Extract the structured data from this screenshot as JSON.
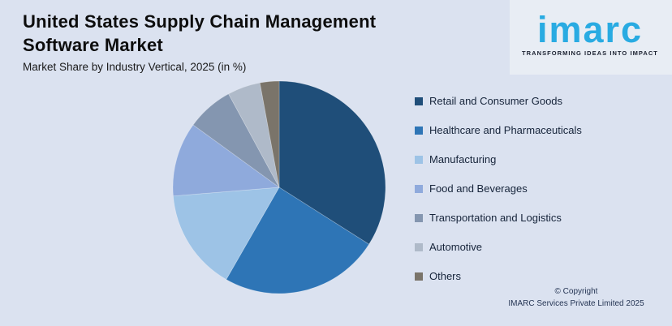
{
  "header": {
    "title": "United States Supply Chain Management Software Market",
    "subtitle": "Market Share by Industry Vertical, 2025 (in %)"
  },
  "logo": {
    "brand": "imarc",
    "tagline": "TRANSFORMING IDEAS INTO IMPACT",
    "brand_color": "#29ABE2"
  },
  "footer": {
    "line1": "© Copyright",
    "line2": "IMARC Services Private Limited 2025"
  },
  "colors": {
    "background": "#DBE2F0",
    "title_text": "#0D0D0D",
    "legend_text": "#16243A",
    "footer_text": "#253554"
  },
  "chart_data": {
    "type": "pie",
    "title": "United States Supply Chain Management Software Market",
    "subtitle": "Market Share by Industry Vertical, 2025 (in %)",
    "legend_position": "right",
    "data_labels_shown": false,
    "start_angle_deg": 0,
    "direction": "clockwise",
    "slices": [
      {
        "label": "Retail and Consumer Goods",
        "value": 34.0,
        "color": "#1F4E79"
      },
      {
        "label": "Healthcare and Pharmaceuticals",
        "value": 24.3,
        "color": "#2E75B6"
      },
      {
        "label": "Manufacturing",
        "value": 15.4,
        "color": "#9DC3E6"
      },
      {
        "label": "Food and Beverages",
        "value": 11.3,
        "color": "#8FAADC"
      },
      {
        "label": "Transportation and Logistics",
        "value": 7.1,
        "color": "#8496B0"
      },
      {
        "label": "Automotive",
        "value": 5.0,
        "color": "#AFBAC9"
      },
      {
        "label": "Others",
        "value": 2.9,
        "color": "#7A746A"
      }
    ]
  }
}
